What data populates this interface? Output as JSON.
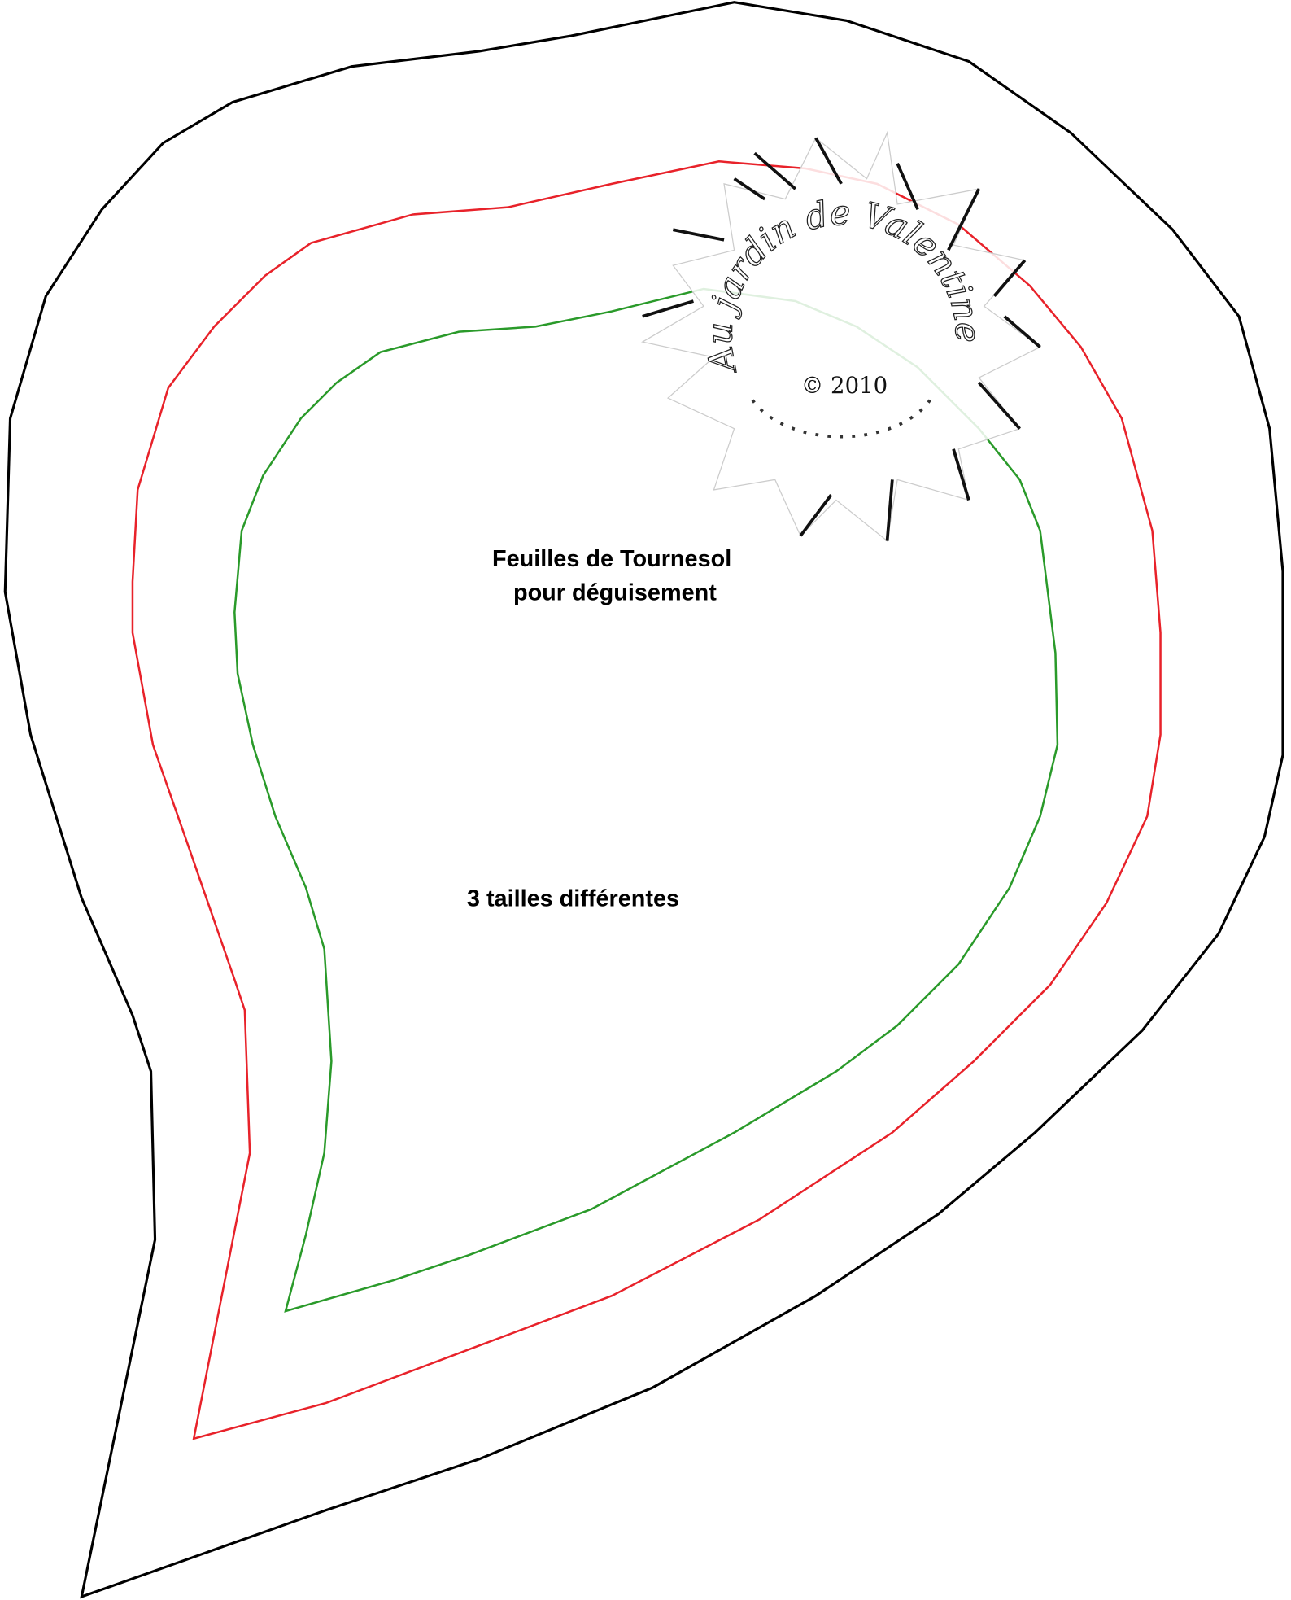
{
  "title": "Feuilles de Tournesol",
  "subtitle": "pour déguisement",
  "note": "3 tailles différentes",
  "watermark": {
    "name": "Au jardin de Valentine",
    "copyright": "© 2010"
  }
}
